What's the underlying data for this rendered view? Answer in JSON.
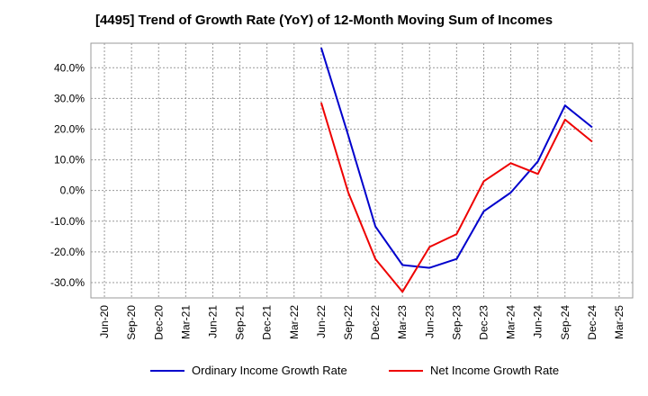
{
  "chart_data": {
    "type": "line",
    "title": "[4495]  Trend of Growth Rate (YoY) of 12-Month Moving Sum of Incomes",
    "x_labels": [
      "Jun-20",
      "Sep-20",
      "Dec-20",
      "Mar-21",
      "Jun-21",
      "Sep-21",
      "Dec-21",
      "Mar-22",
      "Jun-22",
      "Sep-22",
      "Dec-22",
      "Mar-23",
      "Jun-23",
      "Sep-23",
      "Dec-23",
      "Mar-24",
      "Jun-24",
      "Sep-24",
      "Dec-24",
      "Mar-25"
    ],
    "y_ticks": [
      "40.0%",
      "30.0%",
      "20.0%",
      "10.0%",
      "0.0%",
      "-10.0%",
      "-20.0%",
      "-30.0%"
    ],
    "y_tick_values": [
      40,
      30,
      20,
      10,
      0,
      -10,
      -20,
      -30
    ],
    "ylim": [
      -35,
      48
    ],
    "grid": true,
    "legend_position": "bottom",
    "series": [
      {
        "name": "Ordinary Income Growth Rate",
        "color": "#0000cc",
        "values": [
          null,
          null,
          null,
          null,
          null,
          null,
          null,
          null,
          46.5,
          18.0,
          -11.7,
          -24.3,
          -25.2,
          -22.3,
          -6.8,
          -0.7,
          9.5,
          27.7,
          20.6,
          null
        ]
      },
      {
        "name": "Net Income Growth Rate",
        "color": "#ee0000",
        "values": [
          null,
          null,
          null,
          null,
          null,
          null,
          null,
          null,
          28.6,
          -0.6,
          -22.3,
          -33.0,
          -18.4,
          -14.2,
          3.0,
          8.9,
          5.4,
          23.1,
          15.9,
          null
        ]
      }
    ]
  }
}
